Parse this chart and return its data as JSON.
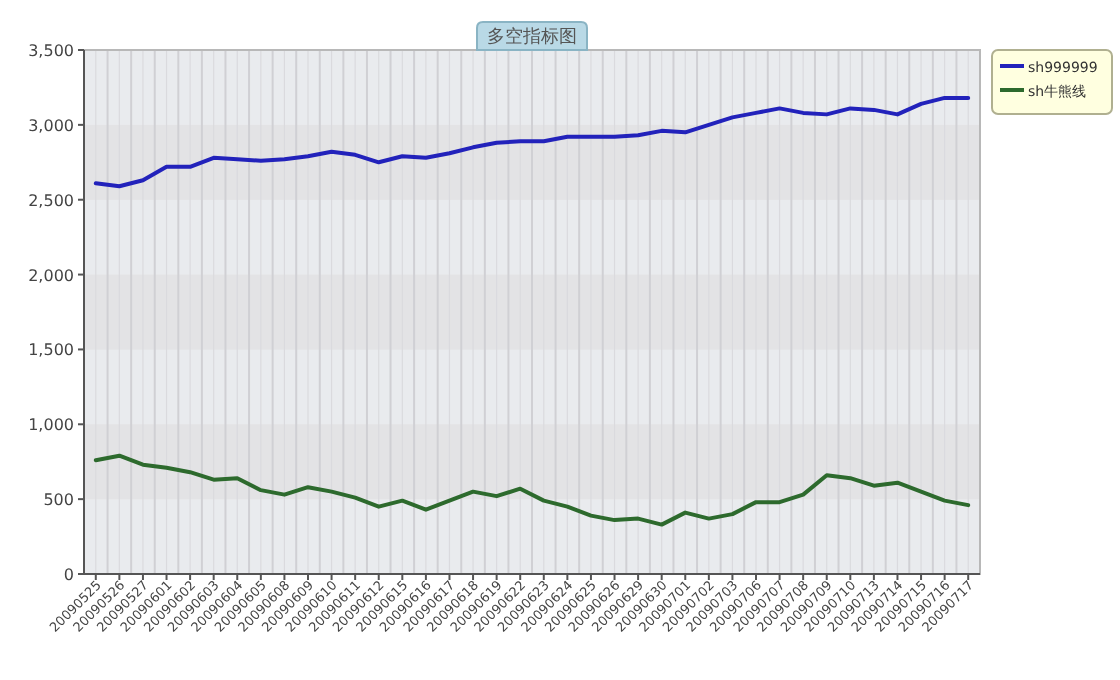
{
  "chart_data": {
    "type": "line",
    "title": "多空指标图",
    "categories": [
      "20090525",
      "20090526",
      "20090527",
      "20090601",
      "20090602",
      "20090603",
      "20090604",
      "20090605",
      "20090608",
      "20090609",
      "20090610",
      "20090611",
      "20090612",
      "20090615",
      "20090616",
      "20090617",
      "20090618",
      "20090619",
      "20090622",
      "20090623",
      "20090624",
      "20090625",
      "20090626",
      "20090629",
      "20090630",
      "20090701",
      "20090702",
      "20090703",
      "20090706",
      "20090707",
      "20090708",
      "20090709",
      "20090710",
      "20090713",
      "20090714",
      "20090715",
      "20090716",
      "20090717"
    ],
    "series": [
      {
        "name": "sh999999",
        "color": "#2222bb",
        "values": [
          2610,
          2590,
          2630,
          2720,
          2720,
          2780,
          2770,
          2760,
          2770,
          2790,
          2820,
          2800,
          2750,
          2790,
          2780,
          2810,
          2850,
          2880,
          2890,
          2890,
          2920,
          2920,
          2920,
          2930,
          2960,
          2950,
          3000,
          3050,
          3080,
          3110,
          3080,
          3070,
          3110,
          3100,
          3070,
          3140,
          3180,
          3180
        ]
      },
      {
        "name": "sh牛熊线",
        "color": "#2d6a2d",
        "values": [
          760,
          790,
          730,
          710,
          680,
          630,
          640,
          560,
          530,
          580,
          550,
          510,
          450,
          490,
          430,
          490,
          550,
          520,
          570,
          490,
          450,
          390,
          360,
          370,
          330,
          410,
          370,
          400,
          480,
          480,
          530,
          660,
          640,
          590,
          610,
          550,
          490,
          460
        ]
      }
    ],
    "ylim": [
      0,
      3500
    ],
    "yticks": [
      0,
      {
        "value": 500,
        "label": "500"
      },
      {
        "value": 1000,
        "label": "1,000"
      },
      {
        "value": 1500,
        "label": "1,500"
      },
      {
        "value": 2000,
        "label": "2,000"
      },
      {
        "value": 2500,
        "label": "2,500"
      },
      {
        "value": 3000,
        "label": "3,000"
      },
      {
        "value": 3500,
        "label": "3,500"
      }
    ],
    "grid": true,
    "legend": "top right",
    "marker": "none",
    "line_style": "solid"
  }
}
